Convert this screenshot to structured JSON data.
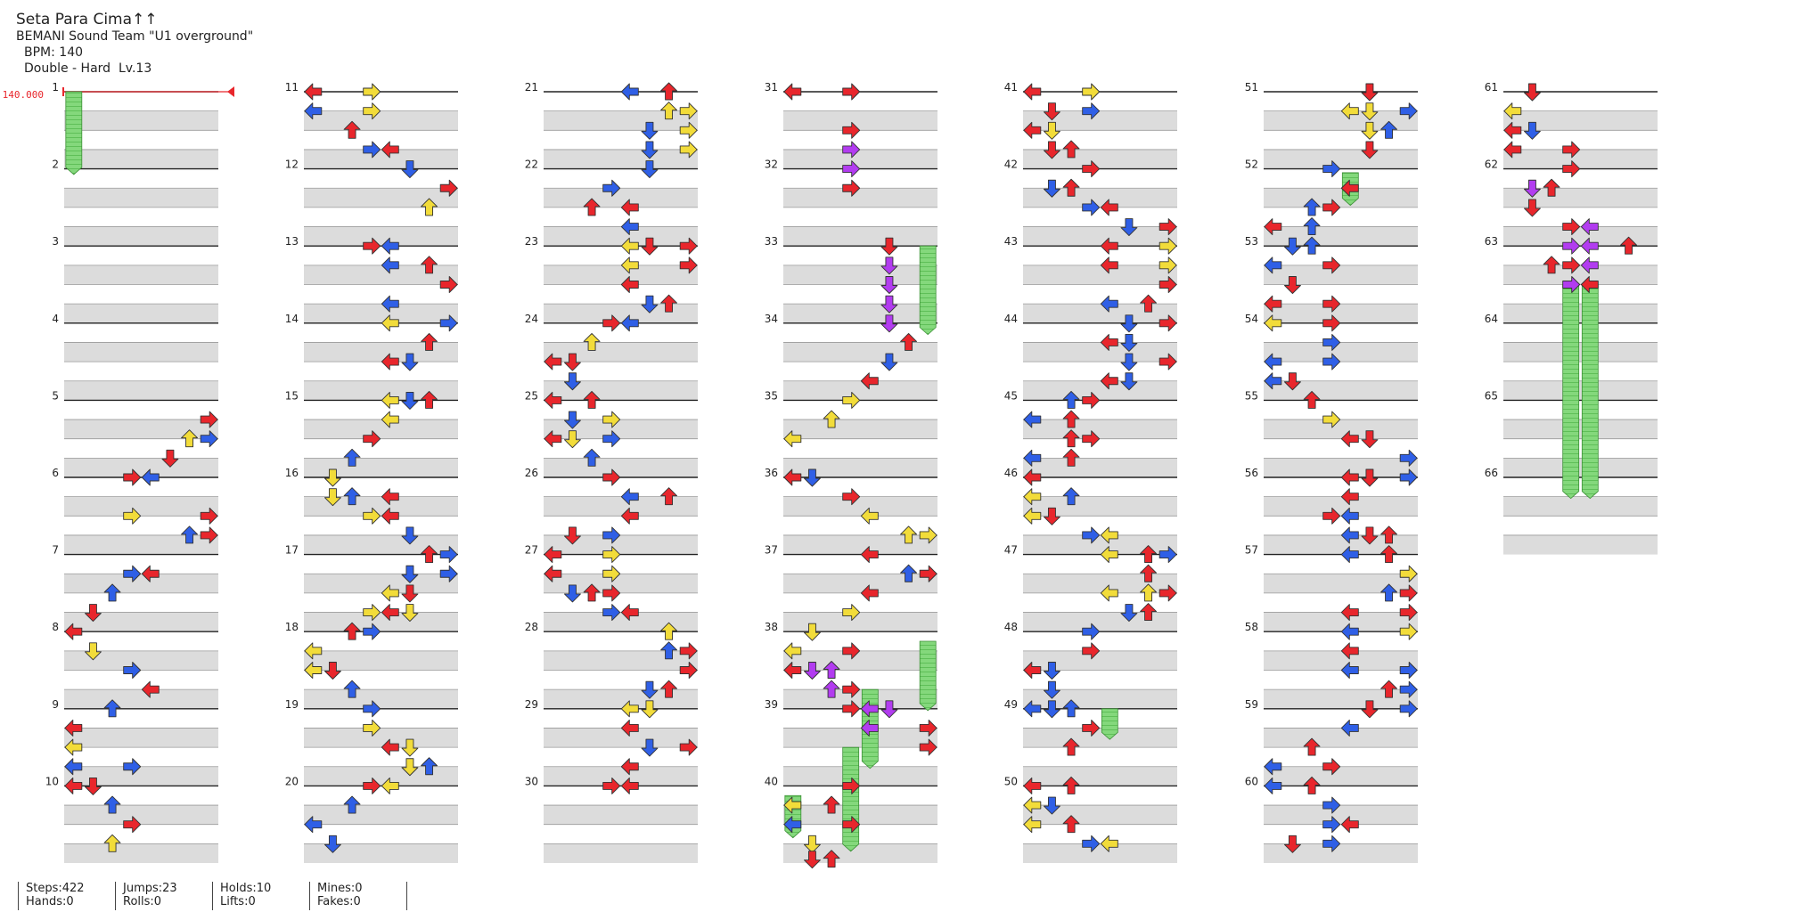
{
  "song": {
    "title": "Seta Para Cima↑↑",
    "artist": "BEMANI Sound Team \"U1 overground\"",
    "bpm_text": "BPM: 140",
    "difficulty": "Double - Hard  Lv.13"
  },
  "bpm_marker": {
    "label": "140.000",
    "color": "#e8262c"
  },
  "colors": {
    "red": "#e8262c",
    "blue": "#2f5fe6",
    "yellow": "#f2dc3a",
    "purple": "#b23cf0",
    "hold": "#84d87c",
    "band": "#dcdcdc"
  },
  "measures": [
    "1",
    "2",
    "3",
    "4",
    "5",
    "6",
    "7",
    "8",
    "9",
    "10",
    "11",
    "12",
    "13",
    "14",
    "15",
    "16",
    "17",
    "18",
    "19",
    "20",
    "21",
    "22",
    "23",
    "24",
    "25",
    "26",
    "27",
    "28",
    "29",
    "30",
    "31",
    "32",
    "33",
    "34",
    "35",
    "36",
    "37",
    "38",
    "39",
    "40",
    "41",
    "42",
    "43",
    "44",
    "45",
    "46",
    "47",
    "48",
    "49",
    "50",
    "51",
    "52",
    "53",
    "54",
    "55",
    "56",
    "57",
    "58",
    "59",
    "60",
    "61",
    "62",
    "63",
    "64",
    "65",
    "66"
  ],
  "stats": [
    {
      "a": "Steps:422",
      "b": "Hands:0"
    },
    {
      "a": "Jumps:23",
      "b": "Rolls:0"
    },
    {
      "a": "Holds:10",
      "b": "Lifts:0"
    },
    {
      "a": "Mines:0",
      "b": "Fakes:0"
    }
  ],
  "note_glyphs": {
    "L": "left-arrow",
    "D": "down-arrow",
    "U": "up-arrow",
    "R": "right-arrow"
  }
}
